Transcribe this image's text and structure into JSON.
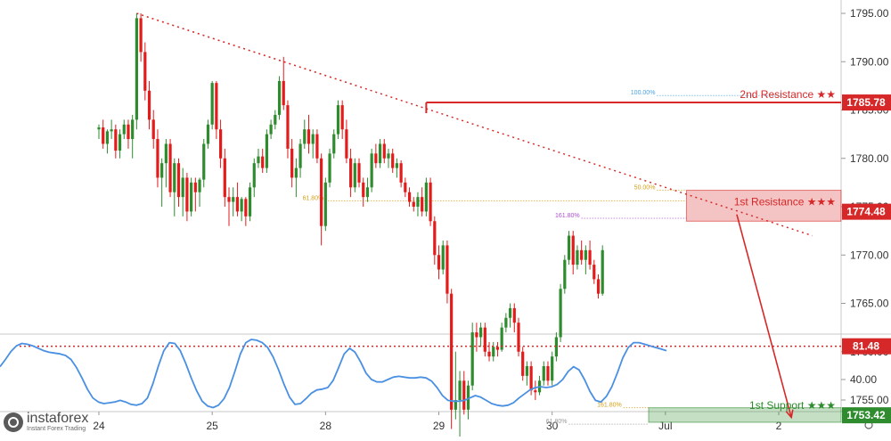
{
  "branding": {
    "name": "instaforex",
    "tagline": "Instant Forex Trading"
  },
  "chart_data": [
    {
      "type": "candlestick",
      "title": "",
      "xlabel": "",
      "ylabel": "",
      "ylim": [
        1746.0,
        1797.0
      ],
      "x_ticks": [
        {
          "label": "24",
          "t": 0
        },
        {
          "label": "25",
          "t": 27
        },
        {
          "label": "28",
          "t": 54
        },
        {
          "label": "29",
          "t": 81
        },
        {
          "label": "30",
          "t": 108
        },
        {
          "label": "Jul",
          "t": 135
        },
        {
          "label": "2",
          "t": 162
        }
      ],
      "y_ticks": [
        1750.0,
        1755.0,
        1760.0,
        1765.0,
        1770.0,
        1775.0,
        1780.0,
        1785.0,
        1790.0,
        1795.0
      ],
      "grid": false,
      "candles": [
        [
          1783.0,
          1783.5,
          1782.0,
          1783.2
        ],
        [
          1783.2,
          1784.0,
          1781.0,
          1781.5
        ],
        [
          1781.5,
          1783.0,
          1780.5,
          1782.8
        ],
        [
          1782.8,
          1784.0,
          1782.0,
          1783.0
        ],
        [
          1783.0,
          1783.5,
          1780.0,
          1780.8
        ],
        [
          1780.8,
          1783.0,
          1780.0,
          1782.5
        ],
        [
          1782.5,
          1784.0,
          1782.0,
          1783.5
        ],
        [
          1783.5,
          1784.0,
          1781.0,
          1782.0
        ],
        [
          1782.0,
          1784.5,
          1780.0,
          1784.0
        ],
        [
          1784.0,
          1795.0,
          1783.0,
          1794.5
        ],
        [
          1794.5,
          1795.0,
          1790.0,
          1791.0
        ],
        [
          1791.0,
          1792.0,
          1786.0,
          1787.0
        ],
        [
          1787.0,
          1788.0,
          1783.0,
          1784.0
        ],
        [
          1784.0,
          1785.0,
          1781.0,
          1782.0
        ],
        [
          1782.0,
          1783.0,
          1777.0,
          1778.0
        ],
        [
          1778.0,
          1780.0,
          1775.0,
          1779.5
        ],
        [
          1779.5,
          1782.0,
          1777.0,
          1781.5
        ],
        [
          1781.5,
          1782.0,
          1776.0,
          1776.5
        ],
        [
          1776.5,
          1780.0,
          1774.0,
          1779.5
        ],
        [
          1779.5,
          1780.0,
          1775.0,
          1776.0
        ],
        [
          1776.0,
          1779.0,
          1774.0,
          1778.0
        ],
        [
          1778.0,
          1778.5,
          1773.5,
          1774.5
        ],
        [
          1774.5,
          1778.0,
          1774.0,
          1777.5
        ],
        [
          1777.5,
          1778.0,
          1774.5,
          1776.5
        ],
        [
          1776.5,
          1778.0,
          1775.0,
          1777.8
        ],
        [
          1777.8,
          1782.0,
          1777.0,
          1781.5
        ],
        [
          1781.5,
          1784.0,
          1781.0,
          1783.5
        ],
        [
          1783.5,
          1788.0,
          1783.0,
          1787.8
        ],
        [
          1787.8,
          1788.0,
          1782.0,
          1783.0
        ],
        [
          1783.0,
          1784.0,
          1779.0,
          1780.0
        ],
        [
          1780.0,
          1781.0,
          1775.0,
          1776.0
        ],
        [
          1776.0,
          1777.0,
          1773.0,
          1775.5
        ],
        [
          1775.5,
          1777.0,
          1774.0,
          1776.0
        ],
        [
          1776.0,
          1777.5,
          1774.0,
          1774.5
        ],
        [
          1774.5,
          1776.0,
          1773.5,
          1775.8
        ],
        [
          1775.8,
          1776.0,
          1773.0,
          1774.0
        ],
        [
          1774.0,
          1777.5,
          1773.5,
          1777.0
        ],
        [
          1777.0,
          1780.0,
          1776.0,
          1779.5
        ],
        [
          1779.5,
          1781.0,
          1779.0,
          1780.2
        ],
        [
          1780.2,
          1781.0,
          1778.5,
          1779.0
        ],
        [
          1779.0,
          1783.0,
          1778.5,
          1782.5
        ],
        [
          1782.5,
          1784.0,
          1782.0,
          1783.5
        ],
        [
          1783.5,
          1785.0,
          1783.0,
          1784.5
        ],
        [
          1784.5,
          1788.5,
          1784.0,
          1788.0
        ],
        [
          1788.0,
          1790.5,
          1785.0,
          1785.5
        ],
        [
          1785.5,
          1786.0,
          1780.0,
          1781.0
        ],
        [
          1781.0,
          1782.0,
          1777.0,
          1778.0
        ],
        [
          1778.0,
          1780.0,
          1776.0,
          1779.0
        ],
        [
          1779.0,
          1782.0,
          1778.0,
          1781.5
        ],
        [
          1781.5,
          1784.0,
          1781.0,
          1783.0
        ],
        [
          1783.0,
          1784.5,
          1780.5,
          1781.5
        ],
        [
          1781.5,
          1783.0,
          1780.0,
          1782.5
        ],
        [
          1782.5,
          1783.0,
          1779.5,
          1780.0
        ],
        [
          1780.0,
          1780.5,
          1771.0,
          1773.0
        ],
        [
          1773.0,
          1778.0,
          1772.5,
          1777.5
        ],
        [
          1777.5,
          1781.0,
          1777.0,
          1780.5
        ],
        [
          1780.5,
          1783.0,
          1780.0,
          1782.5
        ],
        [
          1782.5,
          1786.0,
          1782.0,
          1785.5
        ],
        [
          1785.5,
          1786.0,
          1782.0,
          1783.0
        ],
        [
          1783.0,
          1784.0,
          1779.5,
          1780.0
        ],
        [
          1780.0,
          1781.0,
          1776.0,
          1777.0
        ],
        [
          1777.0,
          1780.0,
          1776.5,
          1779.5
        ],
        [
          1779.5,
          1780.0,
          1777.0,
          1777.5
        ],
        [
          1777.5,
          1778.0,
          1775.0,
          1776.0
        ],
        [
          1776.0,
          1778.0,
          1775.5,
          1777.0
        ],
        [
          1777.0,
          1781.0,
          1776.5,
          1780.5
        ],
        [
          1780.5,
          1781.5,
          1779.0,
          1779.5
        ],
        [
          1779.5,
          1782.0,
          1779.0,
          1781.5
        ],
        [
          1781.5,
          1782.0,
          1779.5,
          1780.0
        ],
        [
          1780.0,
          1781.0,
          1779.0,
          1780.5
        ],
        [
          1780.5,
          1781.0,
          1778.5,
          1779.0
        ],
        [
          1779.0,
          1780.0,
          1778.0,
          1779.5
        ],
        [
          1779.5,
          1779.8,
          1777.0,
          1777.5
        ],
        [
          1777.5,
          1778.0,
          1776.0,
          1776.5
        ],
        [
          1776.5,
          1777.0,
          1775.0,
          1775.5
        ],
        [
          1775.5,
          1776.0,
          1774.5,
          1775.0
        ],
        [
          1775.0,
          1776.5,
          1774.0,
          1776.0
        ],
        [
          1776.0,
          1777.0,
          1774.0,
          1774.5
        ],
        [
          1774.5,
          1778.0,
          1774.0,
          1777.5
        ],
        [
          1777.5,
          1778.0,
          1773.0,
          1773.5
        ],
        [
          1773.5,
          1774.0,
          1769.0,
          1770.0
        ],
        [
          1770.0,
          1771.0,
          1767.5,
          1768.5
        ],
        [
          1768.5,
          1771.5,
          1768.0,
          1771.0
        ],
        [
          1771.0,
          1771.5,
          1765.0,
          1766.0
        ],
        [
          1766.0,
          1766.5,
          1752.0,
          1754.0
        ],
        [
          1754.0,
          1760.0,
          1753.0,
          1755.0
        ],
        [
          1755.0,
          1758.0,
          1751.0,
          1757.0
        ],
        [
          1757.0,
          1758.0,
          1753.5,
          1754.0
        ],
        [
          1754.0,
          1757.0,
          1753.0,
          1756.5
        ],
        [
          1756.5,
          1763.0,
          1756.0,
          1762.0
        ],
        [
          1762.0,
          1763.0,
          1760.0,
          1761.5
        ],
        [
          1761.5,
          1763.0,
          1760.5,
          1762.5
        ],
        [
          1762.5,
          1763.0,
          1759.5,
          1760.0
        ],
        [
          1760.0,
          1761.0,
          1759.0,
          1759.5
        ],
        [
          1759.5,
          1761.0,
          1759.0,
          1760.5
        ],
        [
          1760.5,
          1761.0,
          1759.5,
          1760.2
        ],
        [
          1760.2,
          1763.0,
          1760.0,
          1762.5
        ],
        [
          1762.5,
          1764.0,
          1762.0,
          1763.5
        ],
        [
          1763.5,
          1765.0,
          1762.5,
          1764.5
        ],
        [
          1764.5,
          1765.0,
          1762.0,
          1763.0
        ],
        [
          1763.0,
          1763.5,
          1759.5,
          1760.0
        ],
        [
          1760.0,
          1760.5,
          1757.0,
          1757.5
        ],
        [
          1757.5,
          1759.0,
          1756.5,
          1758.5
        ],
        [
          1758.5,
          1759.0,
          1755.5,
          1756.0
        ],
        [
          1756.0,
          1757.0,
          1755.0,
          1755.8
        ],
        [
          1755.8,
          1757.5,
          1755.5,
          1757.0
        ],
        [
          1757.0,
          1759.0,
          1756.5,
          1758.5
        ],
        [
          1758.5,
          1759.0,
          1756.5,
          1757.0
        ],
        [
          1757.0,
          1760.0,
          1756.5,
          1759.5
        ],
        [
          1759.5,
          1762.0,
          1759.0,
          1761.5
        ],
        [
          1761.5,
          1767.0,
          1761.0,
          1766.5
        ],
        [
          1766.5,
          1770.0,
          1766.0,
          1769.5
        ],
        [
          1769.5,
          1772.5,
          1769.0,
          1772.0
        ],
        [
          1772.0,
          1772.5,
          1768.0,
          1769.0
        ],
        [
          1769.0,
          1771.0,
          1768.5,
          1770.5
        ],
        [
          1770.5,
          1771.5,
          1769.0,
          1769.5
        ],
        [
          1769.5,
          1771.0,
          1768.0,
          1770.5
        ],
        [
          1770.5,
          1771.5,
          1768.5,
          1769.0
        ],
        [
          1769.0,
          1769.5,
          1767.0,
          1767.5
        ],
        [
          1767.5,
          1768.0,
          1765.5,
          1766.0
        ],
        [
          1766.0,
          1771.0,
          1765.8,
          1770.5
        ]
      ],
      "trendline": {
        "from": [
          9,
          1795.0
        ],
        "to": [
          170,
          1772.0
        ],
        "style": "dotted"
      },
      "levels": [
        {
          "label": "2nd Resistance",
          "stars": "★★",
          "value": "1785.78",
          "y": 1785.78,
          "from_t": 78
        },
        {
          "label": "1st Resistance",
          "stars": "★★★",
          "value": "1774.48",
          "y": 1774.48,
          "zone": [
            1773.5,
            1776.7
          ],
          "from_t": 140
        },
        {
          "label": "1st Support",
          "stars": "★★★",
          "value": "1753.42",
          "y": 1753.42,
          "zone": [
            1752.7,
            1754.2
          ],
          "from_t": 131
        }
      ],
      "fib_lines": [
        {
          "label": "100.00%",
          "y": 1786.5,
          "from_t": 133,
          "to_t": 162,
          "color": "#4aa3df"
        },
        {
          "label": "50.00%",
          "y": 1776.7,
          "from_t": 133,
          "to_t": 140,
          "color": "#d4a017"
        },
        {
          "label": "61.80%",
          "y": 1775.6,
          "from_t": 54,
          "to_t": 140,
          "color": "#d4a017"
        },
        {
          "label": "161.80%",
          "y": 1773.8,
          "from_t": 115,
          "to_t": 140,
          "color": "#b04fd0"
        },
        {
          "label": "161.80%",
          "y": 1754.2,
          "from_t": 125,
          "to_t": 131,
          "color": "#d4a017"
        },
        {
          "label": "61.80%",
          "y": 1752.5,
          "from_t": 112,
          "to_t": 131,
          "color": "#999999"
        }
      ],
      "projection_arrow": {
        "from": [
          152,
          1774.2
        ],
        "to": [
          165,
          1753.2
        ]
      },
      "colors": {
        "bull": "#2e8b2e",
        "bear": "#e31b1b",
        "resistance": "#d62828",
        "support": "#2e8b2e"
      }
    },
    {
      "type": "line",
      "title": "",
      "xlabel": "",
      "ylabel": "",
      "ylim": [
        0,
        100
      ],
      "y_ticks": [
        40.0
      ],
      "level": {
        "value": "81.48",
        "y": 81.48
      },
      "series": [
        {
          "color": "#4a90e2",
          "values": [
            56,
            65,
            75,
            82,
            85,
            84,
            82,
            79,
            76,
            74,
            73,
            72,
            70,
            65,
            55,
            42,
            28,
            17,
            12,
            10,
            11,
            12,
            14,
            12,
            9,
            8,
            10,
            17,
            35,
            57,
            76,
            86,
            85,
            76,
            60,
            42,
            26,
            13,
            7,
            5,
            8,
            16,
            30,
            50,
            72,
            86,
            90,
            89,
            86,
            80,
            68,
            52,
            34,
            18,
            9,
            10,
            16,
            23,
            27,
            28,
            30,
            39,
            55,
            72,
            79,
            74,
            62,
            48,
            40,
            37,
            37,
            40,
            43,
            44,
            43,
            42,
            42,
            43,
            42,
            38,
            30,
            20,
            14,
            13,
            13,
            14,
            17,
            20,
            18,
            14,
            10,
            8,
            7,
            8,
            11,
            17,
            22,
            27,
            30,
            31,
            30,
            31,
            34,
            40,
            50,
            56,
            52,
            40,
            25,
            14,
            12,
            19,
            31,
            48,
            67,
            80,
            86,
            86,
            84,
            82,
            80,
            78,
            76
          ]
        }
      ]
    }
  ]
}
